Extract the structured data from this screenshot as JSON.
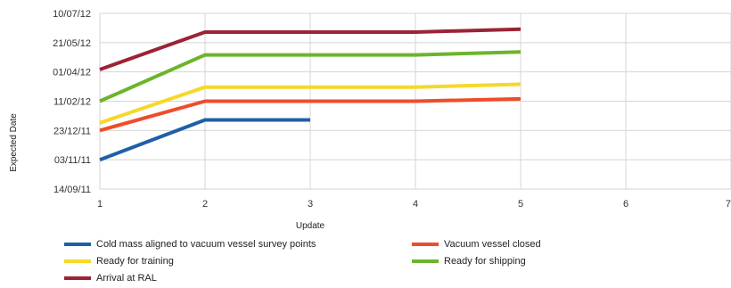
{
  "chart_data": {
    "type": "line",
    "xlabel": "Update",
    "ylabel": "Expected Date",
    "x_ticks": [
      "1",
      "2",
      "3",
      "4",
      "5",
      "6",
      "7"
    ],
    "xlim": [
      1,
      7
    ],
    "y_ticks": [
      "14/09/11",
      "03/11/11",
      "23/12/11",
      "11/02/12",
      "01/04/12",
      "21/05/12",
      "10/07/12"
    ],
    "ylim": [
      "14/09/11",
      "10/07/12"
    ],
    "grid": true,
    "legend_position": "bottom",
    "series": [
      {
        "name": "Cold mass aligned to vacuum vessel survey points",
        "color": "#1f5fa8",
        "points": [
          {
            "x": 1,
            "y": "03/11/11"
          },
          {
            "x": 2,
            "y": "10/01/12"
          },
          {
            "x": 3,
            "y": "10/01/12"
          }
        ]
      },
      {
        "name": "Vacuum vessel closed",
        "color": "#ef4c2a",
        "points": [
          {
            "x": 1,
            "y": "23/12/11"
          },
          {
            "x": 2,
            "y": "11/02/12"
          },
          {
            "x": 4,
            "y": "11/02/12"
          },
          {
            "x": 5,
            "y": "15/02/12"
          }
        ]
      },
      {
        "name": "Ready for training",
        "color": "#f5d82a",
        "points": [
          {
            "x": 1,
            "y": "05/01/12"
          },
          {
            "x": 2,
            "y": "06/03/12"
          },
          {
            "x": 4,
            "y": "06/03/12"
          },
          {
            "x": 5,
            "y": "11/03/12"
          }
        ]
      },
      {
        "name": "Ready for shipping",
        "color": "#6cb42c",
        "points": [
          {
            "x": 1,
            "y": "11/02/12"
          },
          {
            "x": 2,
            "y": "30/04/12"
          },
          {
            "x": 4,
            "y": "30/04/12"
          },
          {
            "x": 5,
            "y": "05/05/12"
          }
        ]
      },
      {
        "name": "Arrival at RAL",
        "color": "#9b2335",
        "points": [
          {
            "x": 1,
            "y": "05/04/12"
          },
          {
            "x": 2,
            "y": "08/06/12"
          },
          {
            "x": 4,
            "y": "08/06/12"
          },
          {
            "x": 5,
            "y": "13/06/12"
          }
        ]
      }
    ]
  }
}
